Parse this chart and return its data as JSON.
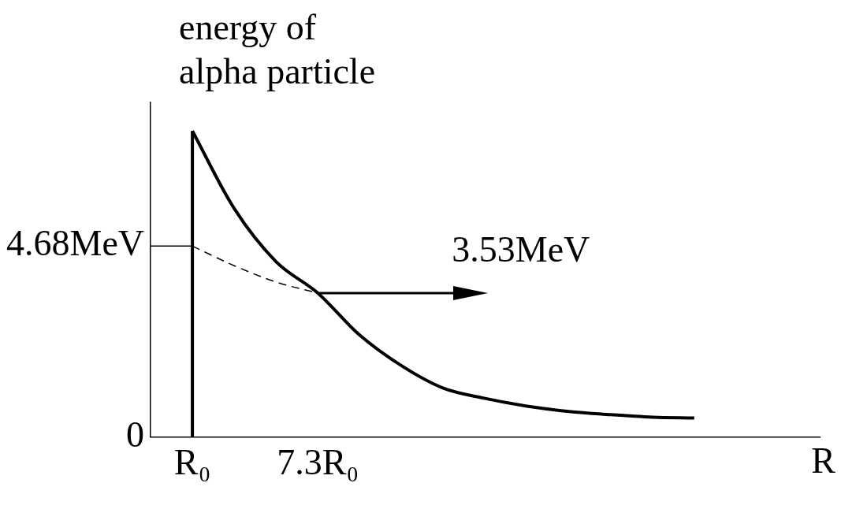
{
  "chart_data": {
    "type": "line",
    "ylabel": "energy of alpha particle",
    "xlabel": "R",
    "categories": [
      null,
      "R₀",
      null,
      null,
      "7.3R₀",
      null,
      null,
      null,
      null,
      null,
      null,
      null,
      null,
      null,
      null,
      null,
      null
    ],
    "ylim": [
      0,
      8.2
    ],
    "yticks": [
      0,
      {
        "value": 4.68,
        "label": "4.68MeV"
      }
    ],
    "series": [
      {
        "color": "#000000",
        "line_style": "solid",
        "values": [
          null,
          7.5,
          5.6,
          4.3,
          3.53,
          2.5,
          1.75,
          1.2,
          0.95,
          0.76,
          0.63,
          0.55,
          0.49,
          0.47,
          null,
          null,
          null
        ]
      },
      {
        "color": "#000000",
        "line_style": "dashed",
        "values": [
          null,
          4.68,
          4.2,
          3.8,
          3.53,
          null,
          null,
          null,
          null,
          null,
          null,
          null,
          null,
          null,
          null,
          null,
          null
        ]
      },
      {
        "color": "#000000",
        "line_style": "solid",
        "values": [
          4.68,
          4.68,
          null,
          null,
          null,
          null,
          null,
          null,
          null,
          null,
          null,
          null,
          null,
          null,
          null,
          null,
          null
        ]
      }
    ],
    "ref_lines": [
      {
        "axis": "x",
        "value": "R₀",
        "color": "#000000"
      }
    ],
    "annotations": [
      {
        "text": "3.53MeV",
        "x": "7.3R₀",
        "y": 3.53
      }
    ]
  }
}
